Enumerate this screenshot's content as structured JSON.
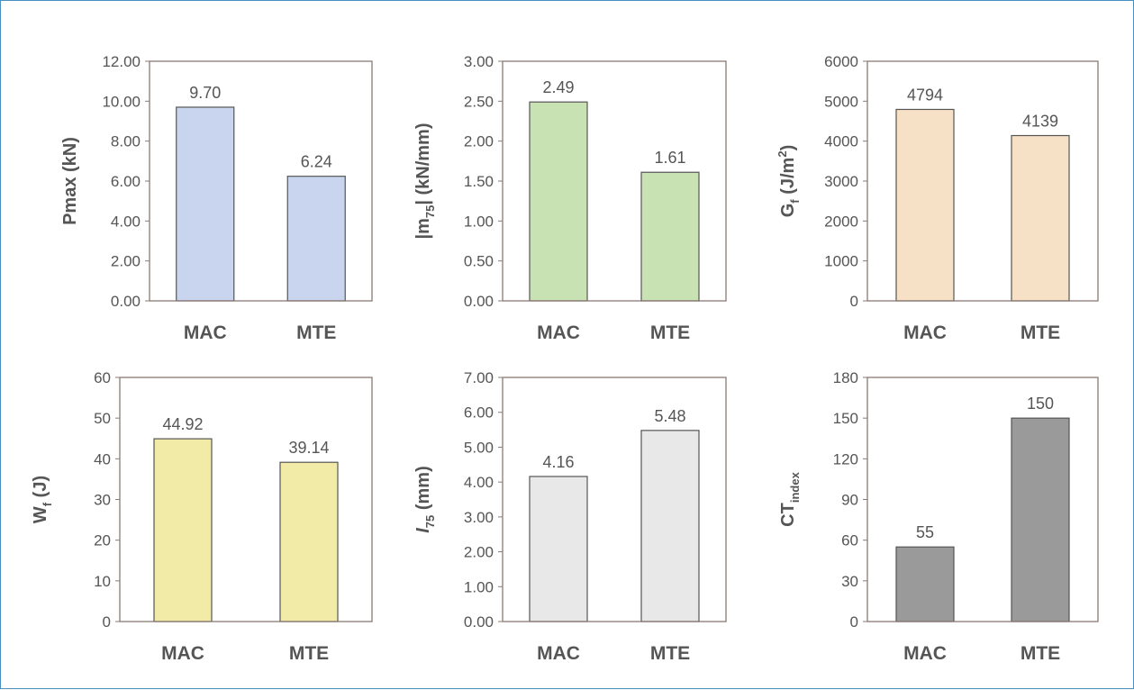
{
  "chart_data": [
    {
      "type": "bar",
      "categories": [
        "MAC",
        "MTE"
      ],
      "values": [
        9.7,
        6.24
      ],
      "value_labels": [
        "9.70",
        "6.24"
      ],
      "ylabel": "Pmax (kN)",
      "ylabel_parts": [
        {
          "t": "Pmax (kN)"
        }
      ],
      "ylim": [
        0,
        12
      ],
      "yticks": [
        "0.00",
        "2.00",
        "4.00",
        "6.00",
        "8.00",
        "10.00",
        "12.00"
      ],
      "bar_color": "#c9d5ee",
      "grid": false
    },
    {
      "type": "bar",
      "categories": [
        "MAC",
        "MTE"
      ],
      "values": [
        2.49,
        1.61
      ],
      "value_labels": [
        "2.49",
        "1.61"
      ],
      "ylabel": "|m75| (kN/mm)",
      "ylabel_parts": [
        {
          "t": "|m"
        },
        {
          "t": "75",
          "s": "sub"
        },
        {
          "t": "| (kN/mm)"
        }
      ],
      "ylim": [
        0,
        3
      ],
      "yticks": [
        "0.00",
        "0.50",
        "1.00",
        "1.50",
        "2.00",
        "2.50",
        "3.00"
      ],
      "bar_color": "#c8e2b4",
      "grid": false
    },
    {
      "type": "bar",
      "categories": [
        "MAC",
        "MTE"
      ],
      "values": [
        4794,
        4139
      ],
      "value_labels": [
        "4794",
        "4139"
      ],
      "ylabel": "Gf (J/m2)",
      "ylabel_parts": [
        {
          "t": "G"
        },
        {
          "t": "f",
          "s": "sub"
        },
        {
          "t": " (J/m"
        },
        {
          "t": "2",
          "s": "sup"
        },
        {
          "t": ")"
        }
      ],
      "ylim": [
        0,
        6000
      ],
      "yticks": [
        "0",
        "1000",
        "2000",
        "3000",
        "4000",
        "5000",
        "6000"
      ],
      "bar_color": "#f6e0c6",
      "grid": false
    },
    {
      "type": "bar",
      "categories": [
        "MAC",
        "MTE"
      ],
      "values": [
        44.92,
        39.14
      ],
      "value_labels": [
        "44.92",
        "39.14"
      ],
      "ylabel": "Wf (J)",
      "ylabel_parts": [
        {
          "t": "W"
        },
        {
          "t": "f",
          "s": "sub"
        },
        {
          "t": " (J)"
        }
      ],
      "ylim": [
        0,
        60
      ],
      "yticks": [
        "0",
        "10",
        "20",
        "30",
        "40",
        "50",
        "60"
      ],
      "bar_color": "#f2eba8",
      "grid": false
    },
    {
      "type": "bar",
      "categories": [
        "MAC",
        "MTE"
      ],
      "values": [
        4.16,
        5.48
      ],
      "value_labels": [
        "4.16",
        "5.48"
      ],
      "ylabel": "I75 (mm)",
      "ylabel_parts": [
        {
          "t": "I",
          "s": "it"
        },
        {
          "t": "75",
          "s": "sub"
        },
        {
          "t": " (mm)"
        }
      ],
      "ylim": [
        0,
        7
      ],
      "yticks": [
        "0.00",
        "1.00",
        "2.00",
        "3.00",
        "4.00",
        "5.00",
        "6.00",
        "7.00"
      ],
      "bar_color": "#e8e8e8",
      "grid": false
    },
    {
      "type": "bar",
      "categories": [
        "MAC",
        "MTE"
      ],
      "values": [
        55,
        150
      ],
      "value_labels": [
        "55",
        "150"
      ],
      "ylabel": "CTindex",
      "ylabel_parts": [
        {
          "t": "CT"
        },
        {
          "t": "index",
          "s": "sub"
        }
      ],
      "ylim": [
        0,
        180
      ],
      "yticks": [
        "0",
        "30",
        "60",
        "90",
        "120",
        "150",
        "180"
      ],
      "bar_color": "#9a9a9a",
      "grid": false
    }
  ],
  "colors": {
    "frame": "#8a7a72",
    "text": "#555555",
    "border": "#4a8fc2"
  }
}
